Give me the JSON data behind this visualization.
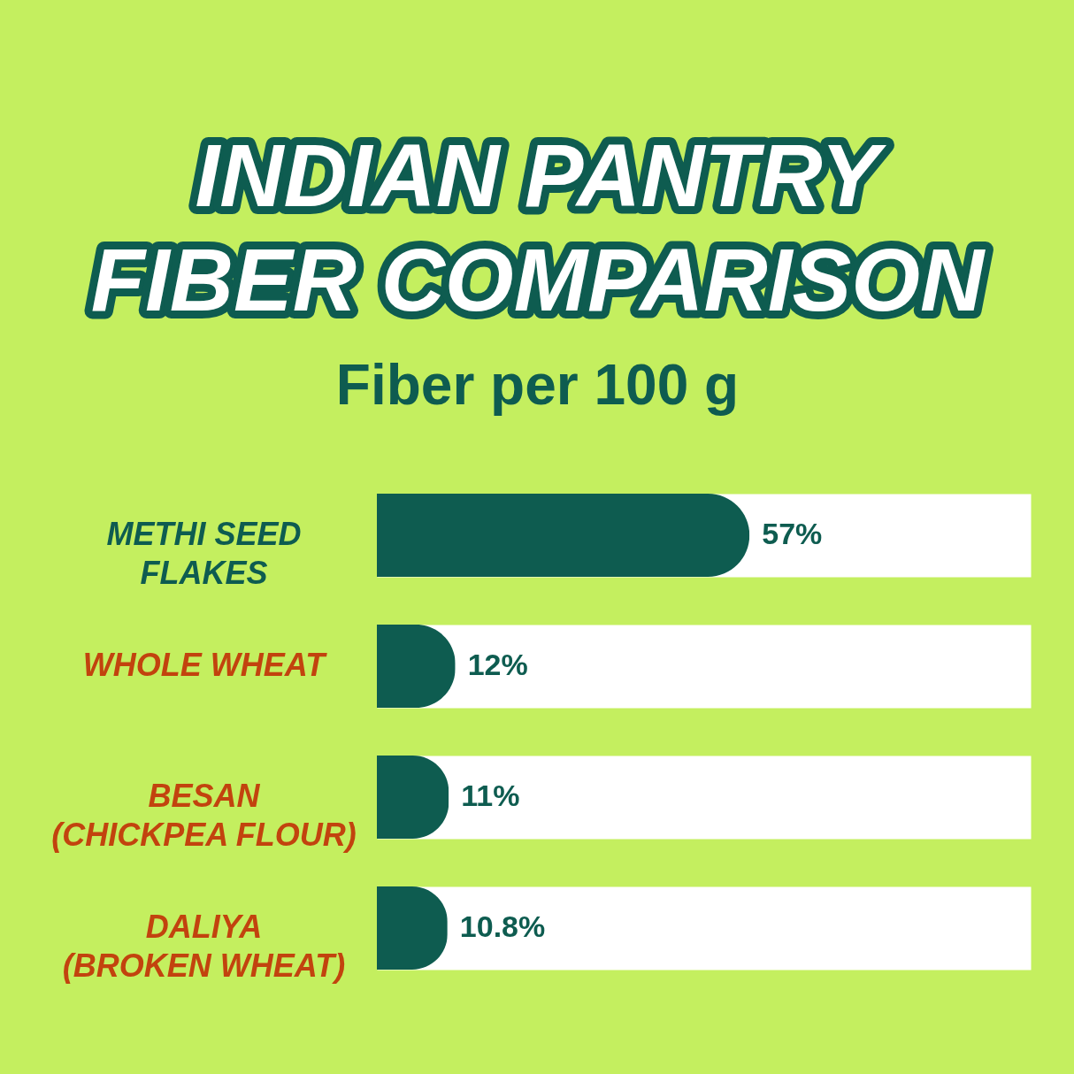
{
  "chart_data": {
    "type": "bar",
    "orientation": "horizontal",
    "title": "INDIAN PANTRY FIBER COMPARISON",
    "subtitle": "Fiber per 100 g",
    "categories": [
      "METHI SEED FLAKES",
      "WHOLE WHEAT",
      "BESAN (CHICKPEA FLOUR)",
      "DALIYA (BROKEN WHEAT)"
    ],
    "values": [
      57,
      12,
      11,
      10.8
    ],
    "value_labels": [
      "57%",
      "12%",
      "11%",
      "10.8%"
    ],
    "color": "#0e5c50",
    "xlim": [
      0,
      100
    ],
    "grid": "y",
    "tick_labels": "y"
  }
}
